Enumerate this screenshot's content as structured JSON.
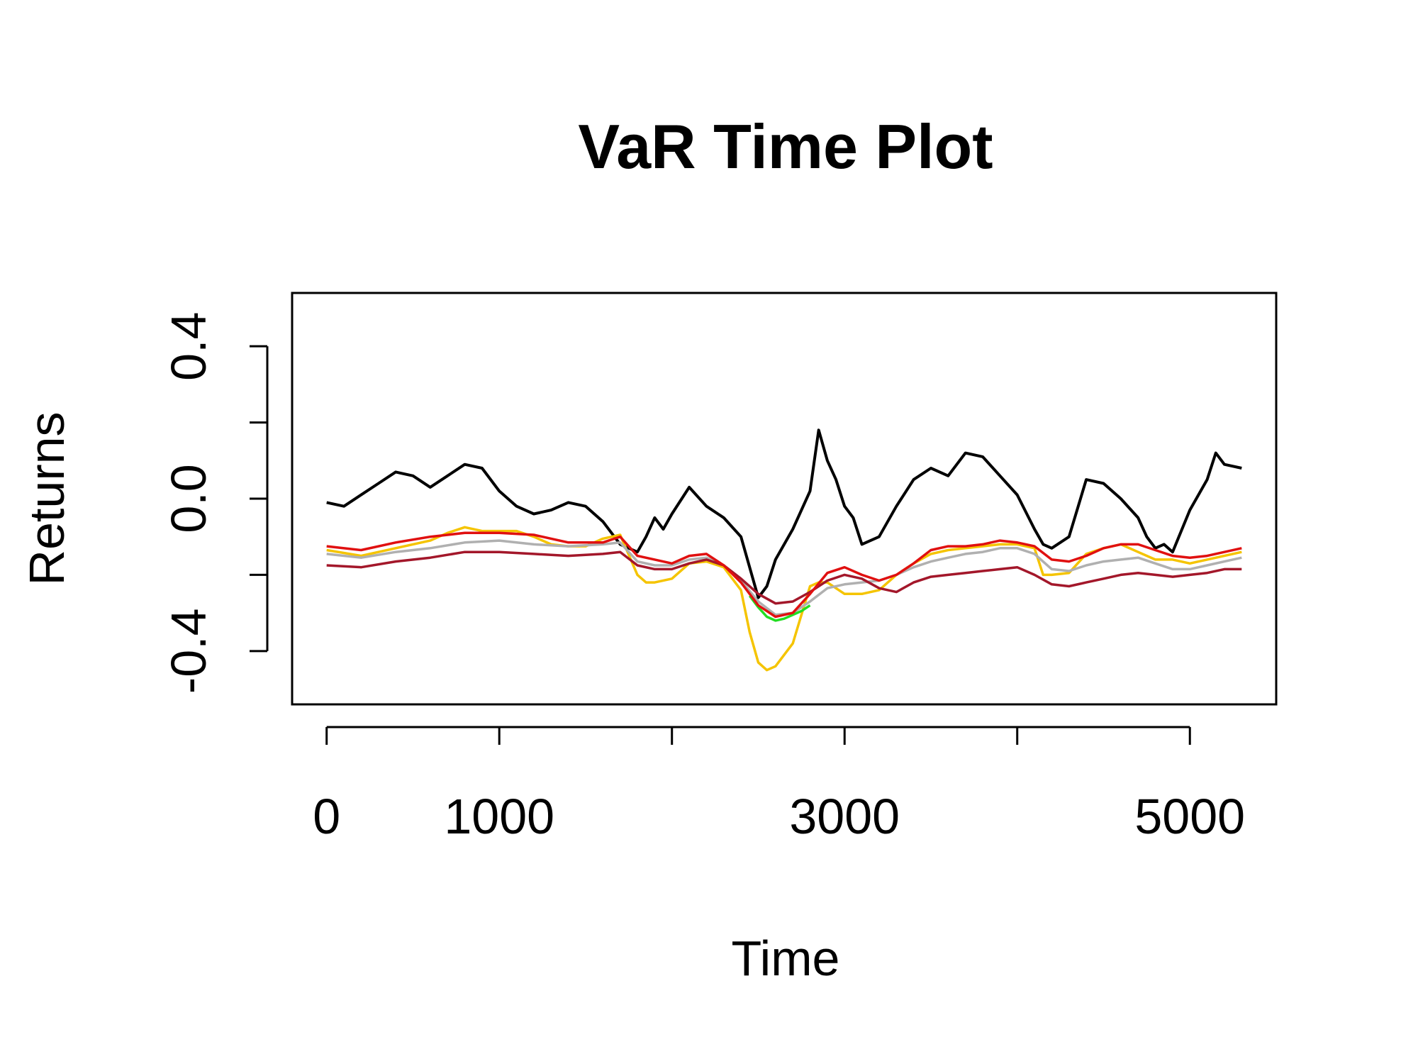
{
  "chart_data": {
    "type": "line",
    "title": "VaR Time Plot",
    "xlabel": "Time",
    "ylabel": "Returns",
    "xlim": [
      -200,
      5500
    ],
    "ylim": [
      -0.54,
      0.54
    ],
    "x_ticks": [
      0,
      1000,
      2000,
      3000,
      4000,
      5000
    ],
    "x_tick_labels": [
      "0",
      "1000",
      "",
      "3000",
      "",
      "5000"
    ],
    "y_ticks": [
      -0.4,
      -0.2,
      0.0,
      0.2,
      0.4
    ],
    "y_tick_labels": [
      "-0.4",
      "",
      "0.0",
      "",
      "0.4"
    ],
    "grid": false,
    "legend": "none",
    "series": [
      {
        "color": "#000000",
        "x": [
          0,
          100,
          200,
          300,
          400,
          500,
          600,
          700,
          800,
          900,
          1000,
          1100,
          1200,
          1300,
          1400,
          1500,
          1600,
          1700,
          1800,
          1850,
          1900,
          1950,
          2000,
          2100,
          2200,
          2300,
          2400,
          2450,
          2500,
          2550,
          2600,
          2700,
          2800,
          2850,
          2900,
          2950,
          3000,
          3050,
          3100,
          3200,
          3300,
          3400,
          3500,
          3600,
          3700,
          3800,
          3900,
          4000,
          4100,
          4150,
          4200,
          4300,
          4400,
          4500,
          4600,
          4700,
          4750,
          4800,
          4850,
          4900,
          5000,
          5100,
          5150,
          5200,
          5300
        ],
        "y": [
          -0.01,
          -0.02,
          0.01,
          0.04,
          0.07,
          0.06,
          0.03,
          0.06,
          0.09,
          0.08,
          0.02,
          -0.02,
          -0.04,
          -0.03,
          -0.01,
          -0.02,
          -0.06,
          -0.12,
          -0.14,
          -0.1,
          -0.05,
          -0.08,
          -0.04,
          0.03,
          -0.02,
          -0.05,
          -0.1,
          -0.18,
          -0.26,
          -0.23,
          -0.16,
          -0.08,
          0.02,
          0.18,
          0.1,
          0.05,
          -0.02,
          -0.05,
          -0.12,
          -0.1,
          -0.02,
          0.05,
          0.08,
          0.06,
          0.12,
          0.11,
          0.06,
          0.01,
          -0.08,
          -0.12,
          -0.13,
          -0.1,
          0.05,
          0.04,
          0.0,
          -0.05,
          -0.1,
          -0.13,
          -0.12,
          -0.14,
          -0.03,
          0.05,
          0.12,
          0.09,
          0.08
        ]
      },
      {
        "color": "#f5c400",
        "x": [
          0,
          200,
          400,
          600,
          700,
          800,
          900,
          1000,
          1100,
          1200,
          1300,
          1400,
          1500,
          1600,
          1700,
          1800,
          1850,
          1900,
          2000,
          2100,
          2200,
          2300,
          2400,
          2450,
          2500,
          2550,
          2600,
          2700,
          2800,
          2850,
          2900,
          3000,
          3100,
          3200,
          3300,
          3400,
          3500,
          3600,
          3700,
          3800,
          3900,
          4000,
          4100,
          4150,
          4200,
          4300,
          4400,
          4500,
          4600,
          4700,
          4800,
          4900,
          5000,
          5100,
          5200,
          5300
        ],
        "y": [
          -0.135,
          -0.15,
          -0.13,
          -0.11,
          -0.09,
          -0.075,
          -0.085,
          -0.085,
          -0.085,
          -0.1,
          -0.12,
          -0.125,
          -0.125,
          -0.105,
          -0.095,
          -0.2,
          -0.22,
          -0.22,
          -0.21,
          -0.17,
          -0.165,
          -0.18,
          -0.24,
          -0.35,
          -0.43,
          -0.45,
          -0.44,
          -0.38,
          -0.23,
          -0.22,
          -0.22,
          -0.25,
          -0.25,
          -0.24,
          -0.2,
          -0.17,
          -0.145,
          -0.135,
          -0.13,
          -0.125,
          -0.12,
          -0.12,
          -0.13,
          -0.2,
          -0.2,
          -0.195,
          -0.145,
          -0.13,
          -0.12,
          -0.14,
          -0.16,
          -0.16,
          -0.17,
          -0.16,
          -0.15,
          -0.14
        ]
      },
      {
        "color": "#b0b0b0",
        "x": [
          0,
          200,
          400,
          600,
          800,
          1000,
          1200,
          1400,
          1600,
          1700,
          1800,
          1900,
          2000,
          2100,
          2200,
          2300,
          2400,
          2500,
          2600,
          2700,
          2800,
          2900,
          3000,
          3100,
          3200,
          3300,
          3400,
          3500,
          3600,
          3700,
          3800,
          3900,
          4000,
          4100,
          4200,
          4300,
          4400,
          4500,
          4600,
          4700,
          4800,
          4900,
          5000,
          5100,
          5200,
          5300
        ],
        "y": [
          -0.145,
          -0.155,
          -0.14,
          -0.13,
          -0.115,
          -0.11,
          -0.12,
          -0.125,
          -0.12,
          -0.115,
          -0.165,
          -0.175,
          -0.175,
          -0.16,
          -0.155,
          -0.175,
          -0.215,
          -0.27,
          -0.305,
          -0.3,
          -0.27,
          -0.235,
          -0.225,
          -0.22,
          -0.215,
          -0.2,
          -0.18,
          -0.165,
          -0.155,
          -0.145,
          -0.14,
          -0.13,
          -0.13,
          -0.145,
          -0.185,
          -0.19,
          -0.175,
          -0.165,
          -0.16,
          -0.155,
          -0.17,
          -0.185,
          -0.185,
          -0.175,
          -0.165,
          -0.155
        ]
      },
      {
        "color": "#22dd22",
        "x": [
          2450,
          2500,
          2550,
          2600,
          2650,
          2700,
          2750,
          2800
        ],
        "y": [
          -0.255,
          -0.285,
          -0.31,
          -0.32,
          -0.315,
          -0.305,
          -0.295,
          -0.28
        ]
      },
      {
        "color": "#a3172a",
        "x": [
          0,
          200,
          400,
          600,
          800,
          1000,
          1200,
          1400,
          1600,
          1700,
          1800,
          1900,
          2000,
          2100,
          2200,
          2300,
          2400,
          2500,
          2600,
          2700,
          2800,
          2900,
          3000,
          3100,
          3200,
          3300,
          3400,
          3500,
          3600,
          3700,
          3800,
          3900,
          4000,
          4100,
          4200,
          4300,
          4400,
          4500,
          4600,
          4700,
          4800,
          4900,
          5000,
          5100,
          5200,
          5300
        ],
        "y": [
          -0.175,
          -0.18,
          -0.165,
          -0.155,
          -0.14,
          -0.14,
          -0.145,
          -0.15,
          -0.145,
          -0.14,
          -0.175,
          -0.185,
          -0.185,
          -0.17,
          -0.16,
          -0.175,
          -0.21,
          -0.25,
          -0.275,
          -0.27,
          -0.245,
          -0.215,
          -0.2,
          -0.21,
          -0.235,
          -0.245,
          -0.22,
          -0.205,
          -0.2,
          -0.195,
          -0.19,
          -0.185,
          -0.18,
          -0.2,
          -0.225,
          -0.23,
          -0.22,
          -0.21,
          -0.2,
          -0.195,
          -0.2,
          -0.205,
          -0.2,
          -0.195,
          -0.185,
          -0.185
        ]
      },
      {
        "color": "#e01010",
        "x": [
          0,
          200,
          400,
          600,
          800,
          1000,
          1200,
          1400,
          1600,
          1700,
          1800,
          1900,
          2000,
          2100,
          2200,
          2300,
          2400,
          2500,
          2600,
          2700,
          2800,
          2900,
          3000,
          3100,
          3200,
          3300,
          3400,
          3500,
          3600,
          3700,
          3800,
          3900,
          4000,
          4100,
          4200,
          4300,
          4400,
          4500,
          4600,
          4700,
          4800,
          4900,
          5000,
          5100,
          5200,
          5300
        ],
        "y": [
          -0.125,
          -0.135,
          -0.115,
          -0.1,
          -0.09,
          -0.09,
          -0.095,
          -0.115,
          -0.115,
          -0.1,
          -0.15,
          -0.16,
          -0.17,
          -0.15,
          -0.145,
          -0.175,
          -0.22,
          -0.28,
          -0.31,
          -0.3,
          -0.25,
          -0.195,
          -0.18,
          -0.2,
          -0.215,
          -0.2,
          -0.17,
          -0.135,
          -0.125,
          -0.125,
          -0.12,
          -0.11,
          -0.115,
          -0.125,
          -0.16,
          -0.165,
          -0.15,
          -0.13,
          -0.12,
          -0.12,
          -0.135,
          -0.15,
          -0.155,
          -0.15,
          -0.14,
          -0.13
        ]
      }
    ]
  }
}
